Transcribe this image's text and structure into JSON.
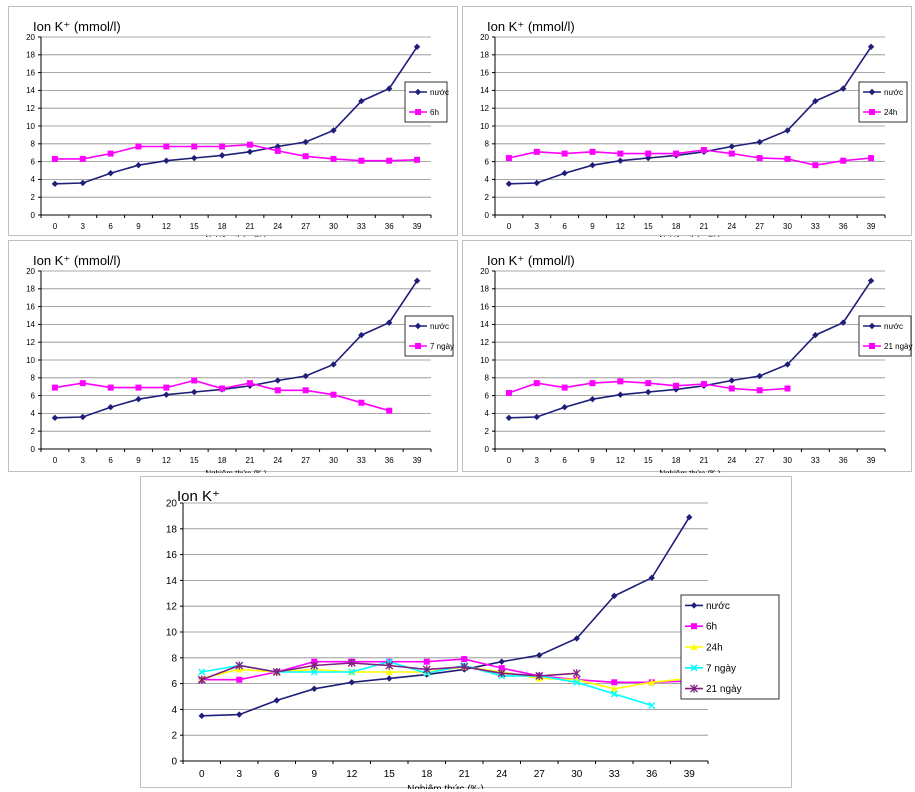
{
  "colors": {
    "series_1": "#1f1f7a",
    "series_2": "#ff00ff",
    "series_3": "#ffff00",
    "series_4": "#00ffff",
    "series_5": "#7f1f7f",
    "grid": "#8c8c8c",
    "axis": "#000000"
  },
  "chart_data": [
    {
      "type": "line",
      "title": "Ion K⁺ (mmol/l)",
      "xlabel": "Nghiệm thức (‰)",
      "ylabel": "",
      "ylim": [
        0,
        20
      ],
      "yticks": [
        0,
        2,
        4,
        6,
        8,
        10,
        12,
        14,
        16,
        18,
        20
      ],
      "x": [
        0,
        3,
        6,
        9,
        12,
        15,
        18,
        21,
        24,
        27,
        30,
        33,
        36,
        39
      ],
      "grid": true,
      "legend": "right",
      "series": [
        {
          "name": "nước",
          "marker": "diamond",
          "values": [
            3.5,
            3.6,
            4.7,
            5.6,
            6.1,
            6.4,
            6.7,
            7.1,
            7.7,
            8.2,
            9.5,
            12.8,
            14.2,
            18.9
          ]
        },
        {
          "name": "6h",
          "marker": "square",
          "values": [
            6.3,
            6.3,
            6.9,
            7.7,
            7.7,
            7.7,
            7.7,
            7.9,
            7.2,
            6.6,
            6.3,
            6.1,
            6.1,
            6.2
          ]
        }
      ]
    },
    {
      "type": "line",
      "title": "Ion K⁺ (mmol/l)",
      "xlabel": "Nghiệm thức (‰)",
      "ylabel": "",
      "ylim": [
        0,
        20
      ],
      "yticks": [
        0,
        2,
        4,
        6,
        8,
        10,
        12,
        14,
        16,
        18,
        20
      ],
      "x": [
        0,
        3,
        6,
        9,
        12,
        15,
        18,
        21,
        24,
        27,
        30,
        33,
        36,
        39
      ],
      "grid": true,
      "legend": "right",
      "series": [
        {
          "name": "nước",
          "marker": "diamond",
          "values": [
            3.5,
            3.6,
            4.7,
            5.6,
            6.1,
            6.4,
            6.7,
            7.1,
            7.7,
            8.2,
            9.5,
            12.8,
            14.2,
            18.9
          ]
        },
        {
          "name": "24h",
          "marker": "square",
          "values": [
            6.4,
            7.1,
            6.9,
            7.1,
            6.9,
            6.9,
            6.9,
            7.3,
            6.9,
            6.4,
            6.3,
            5.6,
            6.1,
            6.4
          ]
        }
      ]
    },
    {
      "type": "line",
      "title": "Ion K⁺ (mmol/l)",
      "xlabel": "Nghiệm thức (‰)",
      "ylabel": "",
      "ylim": [
        0,
        20
      ],
      "yticks": [
        0,
        2,
        4,
        6,
        8,
        10,
        12,
        14,
        16,
        18,
        20
      ],
      "x": [
        0,
        3,
        6,
        9,
        12,
        15,
        18,
        21,
        24,
        27,
        30,
        33,
        36,
        39
      ],
      "grid": true,
      "legend": "right",
      "series": [
        {
          "name": "nước",
          "marker": "diamond",
          "values": [
            3.5,
            3.6,
            4.7,
            5.6,
            6.1,
            6.4,
            6.7,
            7.1,
            7.7,
            8.2,
            9.5,
            12.8,
            14.2,
            18.9
          ]
        },
        {
          "name": "7 ngày",
          "marker": "square",
          "values": [
            6.9,
            7.4,
            6.9,
            6.9,
            6.9,
            7.7,
            6.8,
            7.4,
            6.6,
            6.6,
            6.1,
            5.2,
            4.3,
            null
          ]
        }
      ]
    },
    {
      "type": "line",
      "title": "Ion K⁺ (mmol/l)",
      "xlabel": "Nghiệm thức (‰)",
      "ylabel": "",
      "ylim": [
        0,
        20
      ],
      "yticks": [
        0,
        2,
        4,
        6,
        8,
        10,
        12,
        14,
        16,
        18,
        20
      ],
      "x": [
        0,
        3,
        6,
        9,
        12,
        15,
        18,
        21,
        24,
        27,
        30,
        33,
        36,
        39
      ],
      "grid": true,
      "legend": "right",
      "series": [
        {
          "name": "nước",
          "marker": "diamond",
          "values": [
            3.5,
            3.6,
            4.7,
            5.6,
            6.1,
            6.4,
            6.7,
            7.1,
            7.7,
            8.2,
            9.5,
            12.8,
            14.2,
            18.9
          ]
        },
        {
          "name": "21 ngày",
          "marker": "square",
          "values": [
            6.3,
            7.4,
            6.9,
            7.4,
            7.6,
            7.4,
            7.1,
            7.3,
            6.8,
            6.6,
            6.8,
            null,
            null,
            null
          ]
        }
      ]
    },
    {
      "type": "line",
      "title": "Ion K⁺",
      "xlabel": "Nghiệm thức (‰)",
      "ylabel": "",
      "ylim": [
        0,
        20
      ],
      "yticks": [
        0,
        2,
        4,
        6,
        8,
        10,
        12,
        14,
        16,
        18,
        20
      ],
      "x": [
        0,
        3,
        6,
        9,
        12,
        15,
        18,
        21,
        24,
        27,
        30,
        33,
        36,
        39
      ],
      "grid": true,
      "legend": "right",
      "series": [
        {
          "name": "nước",
          "marker": "diamond",
          "values": [
            3.5,
            3.6,
            4.7,
            5.6,
            6.1,
            6.4,
            6.7,
            7.1,
            7.7,
            8.2,
            9.5,
            12.8,
            14.2,
            18.9
          ]
        },
        {
          "name": "6h",
          "marker": "square",
          "values": [
            6.3,
            6.3,
            6.9,
            7.7,
            7.7,
            7.7,
            7.7,
            7.9,
            7.2,
            6.6,
            6.3,
            6.1,
            6.1,
            6.2
          ]
        },
        {
          "name": "24h",
          "marker": "triangle",
          "values": [
            6.4,
            7.1,
            6.9,
            7.1,
            6.9,
            6.9,
            6.9,
            7.3,
            6.9,
            6.4,
            6.3,
            5.6,
            6.1,
            6.4
          ]
        },
        {
          "name": "7 ngày",
          "marker": "x",
          "values": [
            6.9,
            7.4,
            6.9,
            6.9,
            6.9,
            7.7,
            6.8,
            7.4,
            6.6,
            6.6,
            6.1,
            5.2,
            4.3,
            null
          ]
        },
        {
          "name": "21 ngày",
          "marker": "star",
          "values": [
            6.3,
            7.4,
            6.9,
            7.4,
            7.6,
            7.4,
            7.1,
            7.3,
            6.8,
            6.6,
            6.8,
            null,
            null,
            null
          ]
        }
      ]
    }
  ]
}
